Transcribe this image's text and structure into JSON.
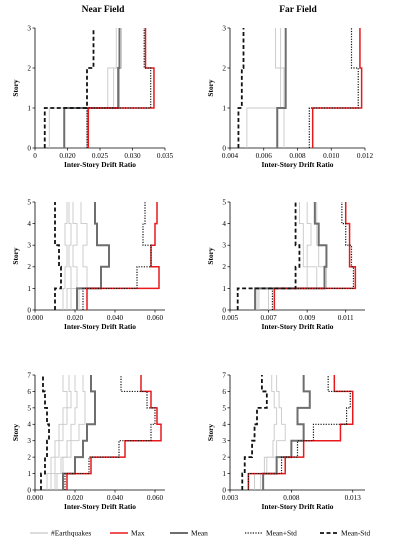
{
  "column_titles": [
    "Near Field",
    "Far Field"
  ],
  "legend": {
    "entries": [
      {
        "label": "#Earthquakes",
        "style": "eq"
      },
      {
        "label": "Max",
        "style": "max"
      },
      {
        "label": "Mean",
        "style": "mean"
      },
      {
        "label": "Mean+Std",
        "style": "meanplus"
      },
      {
        "label": "Mean-Std",
        "style": "meanminus"
      }
    ]
  },
  "colors": {
    "max": "#e8191c",
    "mean": "#6e6e6e",
    "eq": "#c8c8c8",
    "std": "#111111"
  },
  "chart_data": [
    {
      "type": "line",
      "panel": "near-3",
      "xlabel": "Inter-Story Drift Ratio",
      "ylabel": "Story",
      "xlim": [
        0.015,
        0.035
      ],
      "xticks": [
        "0",
        "0.020",
        "0.025",
        "0.030",
        "0.035"
      ],
      "ylim": [
        0,
        3
      ],
      "yticks": [
        "0",
        "1",
        "2",
        "3"
      ],
      "series": [
        {
          "name": "#Earthquakes",
          "values": [
            0.0172,
            0.028,
            0.0275
          ]
        },
        {
          "name": "#Earthquakes",
          "values": [
            0.023,
            0.0262,
            0.028
          ]
        },
        {
          "name": "#Earthquakes",
          "values": [
            0.0195,
            0.0271,
            0.0283
          ]
        },
        {
          "name": "Mean",
          "values": [
            0.0195,
            0.0278,
            0.028
          ]
        },
        {
          "name": "Max",
          "values": [
            0.0232,
            0.0333,
            0.032
          ]
        },
        {
          "name": "Mean+Std",
          "values": [
            0.023,
            0.0328,
            0.0318
          ]
        },
        {
          "name": "Mean-Std",
          "values": [
            0.0165,
            0.023,
            0.024
          ]
        }
      ]
    },
    {
      "type": "line",
      "panel": "far-3",
      "xlabel": "Inter-Story Drift Ratio",
      "ylabel": "Story",
      "xlim": [
        0.004,
        0.012
      ],
      "xticks": [
        "0.004",
        "0.006",
        "0.008",
        "0.010",
        "0.012"
      ],
      "ylim": [
        0,
        3
      ],
      "yticks": [
        "0",
        "1",
        "2",
        "3"
      ],
      "series": [
        {
          "name": "#Earthquakes",
          "values": [
            0.0072,
            0.0072,
            0.0067
          ]
        },
        {
          "name": "#Earthquakes",
          "values": [
            0.005,
            0.007,
            0.007
          ]
        },
        {
          "name": "Mean",
          "values": [
            0.0068,
            0.0073,
            0.0073
          ]
        },
        {
          "name": "Max",
          "values": [
            0.0089,
            0.0118,
            0.0117
          ]
        },
        {
          "name": "Mean+Std",
          "values": [
            0.0087,
            0.0116,
            0.0112
          ]
        },
        {
          "name": "Mean-Std",
          "values": [
            0.0045,
            0.0047,
            0.0048
          ]
        }
      ]
    },
    {
      "type": "line",
      "panel": "near-5",
      "xlabel": "Inter-Story Drift Ratio",
      "ylabel": "Story",
      "xlim": [
        0,
        0.065
      ],
      "xticks": [
        "0.000",
        "0.020",
        "0.040",
        "0.060"
      ],
      "ylim": [
        0,
        5
      ],
      "yticks": [
        "0",
        "1",
        "2",
        "3",
        "4",
        "5"
      ],
      "series": [
        {
          "name": "#Earthquakes",
          "values": [
            0.016,
            0.018,
            0.017,
            0.018,
            0.017
          ]
        },
        {
          "name": "#Earthquakes",
          "values": [
            0.018,
            0.021,
            0.019,
            0.021,
            0.019
          ]
        },
        {
          "name": "#Earthquakes",
          "values": [
            0.014,
            0.015,
            0.016,
            0.015,
            0.016
          ]
        },
        {
          "name": "#Earthquakes",
          "values": [
            0.022,
            0.026,
            0.024,
            0.026,
            0.023
          ]
        },
        {
          "name": "Mean",
          "values": [
            0.021,
            0.033,
            0.037,
            0.031,
            0.03
          ]
        },
        {
          "name": "Max",
          "values": [
            0.026,
            0.062,
            0.058,
            0.06,
            0.061
          ]
        },
        {
          "name": "Mean+Std",
          "values": [
            0.024,
            0.051,
            0.058,
            0.054,
            0.055
          ]
        },
        {
          "name": "Mean-Std",
          "values": [
            0.01,
            0.013,
            0.012,
            0.01,
            0.01
          ]
        }
      ]
    },
    {
      "type": "line",
      "panel": "far-5",
      "xlabel": "Inter-Story Drift Ratio",
      "ylabel": "Story",
      "xlim": [
        0.005,
        0.012
      ],
      "xticks": [
        "0.005",
        "0.007",
        "0.009",
        "0.011"
      ],
      "ylim": [
        0,
        5
      ],
      "yticks": [
        "0",
        "1",
        "2",
        "3",
        "4",
        "5"
      ],
      "series": [
        {
          "name": "#Earthquakes",
          "values": [
            0.0065,
            0.0095,
            0.009,
            0.0092,
            0.009
          ]
        },
        {
          "name": "#Earthquakes",
          "values": [
            0.007,
            0.01,
            0.0096,
            0.0095,
            0.0095
          ]
        },
        {
          "name": "#Earthquakes",
          "values": [
            0.0064,
            0.009,
            0.0088,
            0.0088,
            0.0086
          ]
        },
        {
          "name": "Mean",
          "values": [
            0.0063,
            0.0099,
            0.01,
            0.0096,
            0.0094
          ]
        },
        {
          "name": "Max",
          "values": [
            0.0073,
            0.0115,
            0.0112,
            0.0112,
            0.011
          ]
        },
        {
          "name": "Mean+Std",
          "values": [
            0.0072,
            0.0114,
            0.0113,
            0.011,
            0.0108
          ]
        },
        {
          "name": "Mean-Std",
          "values": [
            0.0054,
            0.0084,
            0.0086,
            0.0084,
            0.0084
          ]
        }
      ]
    },
    {
      "type": "line",
      "panel": "near-7",
      "xlabel": "Inter-Story Drift Ratio",
      "ylabel": "Story",
      "xlim": [
        0,
        0.065
      ],
      "xticks": [
        "0.000",
        "0.020",
        "0.040",
        "0.060"
      ],
      "ylim": [
        0,
        7
      ],
      "yticks": [
        "0",
        "1",
        "2",
        "3",
        "4",
        "5",
        "6",
        "7"
      ],
      "series": [
        {
          "name": "#Earthquakes",
          "values": [
            0.008,
            0.01,
            0.012,
            0.014,
            0.016,
            0.018,
            0.017
          ]
        },
        {
          "name": "#Earthquakes",
          "values": [
            0.01,
            0.013,
            0.016,
            0.018,
            0.02,
            0.021,
            0.02
          ]
        },
        {
          "name": "#Earthquakes",
          "values": [
            0.011,
            0.014,
            0.018,
            0.022,
            0.025,
            0.025,
            0.024
          ]
        },
        {
          "name": "#Earthquakes",
          "values": [
            0.006,
            0.008,
            0.01,
            0.012,
            0.014,
            0.016,
            0.014
          ]
        },
        {
          "name": "Mean",
          "values": [
            0.014,
            0.02,
            0.024,
            0.026,
            0.03,
            0.03,
            0.028
          ]
        },
        {
          "name": "Max",
          "values": [
            0.016,
            0.028,
            0.045,
            0.063,
            0.061,
            0.058,
            0.053
          ]
        },
        {
          "name": "Mean+Std",
          "values": [
            0.015,
            0.027,
            0.042,
            0.058,
            0.06,
            0.056,
            0.043
          ]
        },
        {
          "name": "Mean-Std",
          "values": [
            0.003,
            0.005,
            0.006,
            0.007,
            0.006,
            0.005,
            0.004
          ]
        }
      ]
    },
    {
      "type": "line",
      "panel": "far-7",
      "xlabel": "Inter-Story Drift Ratio",
      "ylabel": "Story",
      "xlim": [
        0.003,
        0.014
      ],
      "xticks": [
        "0.003",
        "0.008",
        "0.013"
      ],
      "ylim": [
        0,
        7
      ],
      "yticks": [
        "0",
        "1",
        "2",
        "3",
        "4",
        "5",
        "6",
        "7"
      ],
      "series": [
        {
          "name": "#Earthquakes",
          "values": [
            0.0055,
            0.006,
            0.0068,
            0.0075,
            0.0072,
            0.007,
            0.0068
          ]
        },
        {
          "name": "#Earthquakes",
          "values": [
            0.005,
            0.0058,
            0.0065,
            0.0066,
            0.0068,
            0.0066,
            0.0064
          ]
        },
        {
          "name": "Mean",
          "values": [
            0.0057,
            0.0068,
            0.008,
            0.009,
            0.0085,
            0.0095,
            0.009
          ]
        },
        {
          "name": "Max",
          "values": [
            0.0045,
            0.0075,
            0.009,
            0.012,
            0.013,
            0.013,
            0.0115
          ]
        },
        {
          "name": "Mean+Std",
          "values": [
            0.0045,
            0.0072,
            0.0085,
            0.0098,
            0.0125,
            0.0128,
            0.011
          ]
        },
        {
          "name": "Mean-Std",
          "values": [
            0.004,
            0.0042,
            0.0048,
            0.005,
            0.0052,
            0.006,
            0.0056
          ]
        }
      ]
    }
  ]
}
